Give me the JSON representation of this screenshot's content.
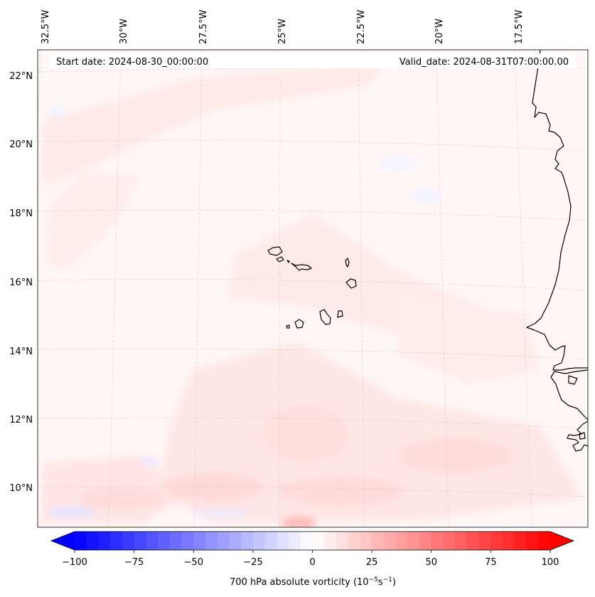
{
  "map": {
    "projection": "lambert-conformal",
    "background_field": "700 hPa absolute vorticity, mostly weakly positive (light pink) over the domain with patches of slightly stronger vorticity in the south",
    "start_date_label": "Start date: 2024-08-30_00:00:00",
    "valid_date_label": "Valid_date: 2024-08-31T07:00:00.00",
    "lon_labels": [
      "32.5°W",
      "30°W",
      "27.5°W",
      "25°W",
      "22.5°W",
      "20°W",
      "17.5°W"
    ],
    "lat_labels": [
      "22°N",
      "20°N",
      "18°N",
      "16°N",
      "14°N",
      "12°N",
      "10°N"
    ],
    "gridlines": true,
    "coastlines": [
      "Cape Verde islands",
      "West African coast"
    ]
  },
  "colorbar": {
    "label_prefix": "700 hPa absolute vorticity (10",
    "exp1": "−5",
    "label_mid": "s",
    "exp2": "−1",
    "label_suffix": ")",
    "tick_labels": [
      "−100",
      "−75",
      "−50",
      "−25",
      "0",
      "25",
      "50",
      "75",
      "100"
    ],
    "min": -100,
    "max": 100,
    "extend": "both",
    "colormap": "bwr",
    "colors": {
      "negative": "#0000ff",
      "zero": "#ffffff",
      "positive": "#ff0000"
    }
  }
}
